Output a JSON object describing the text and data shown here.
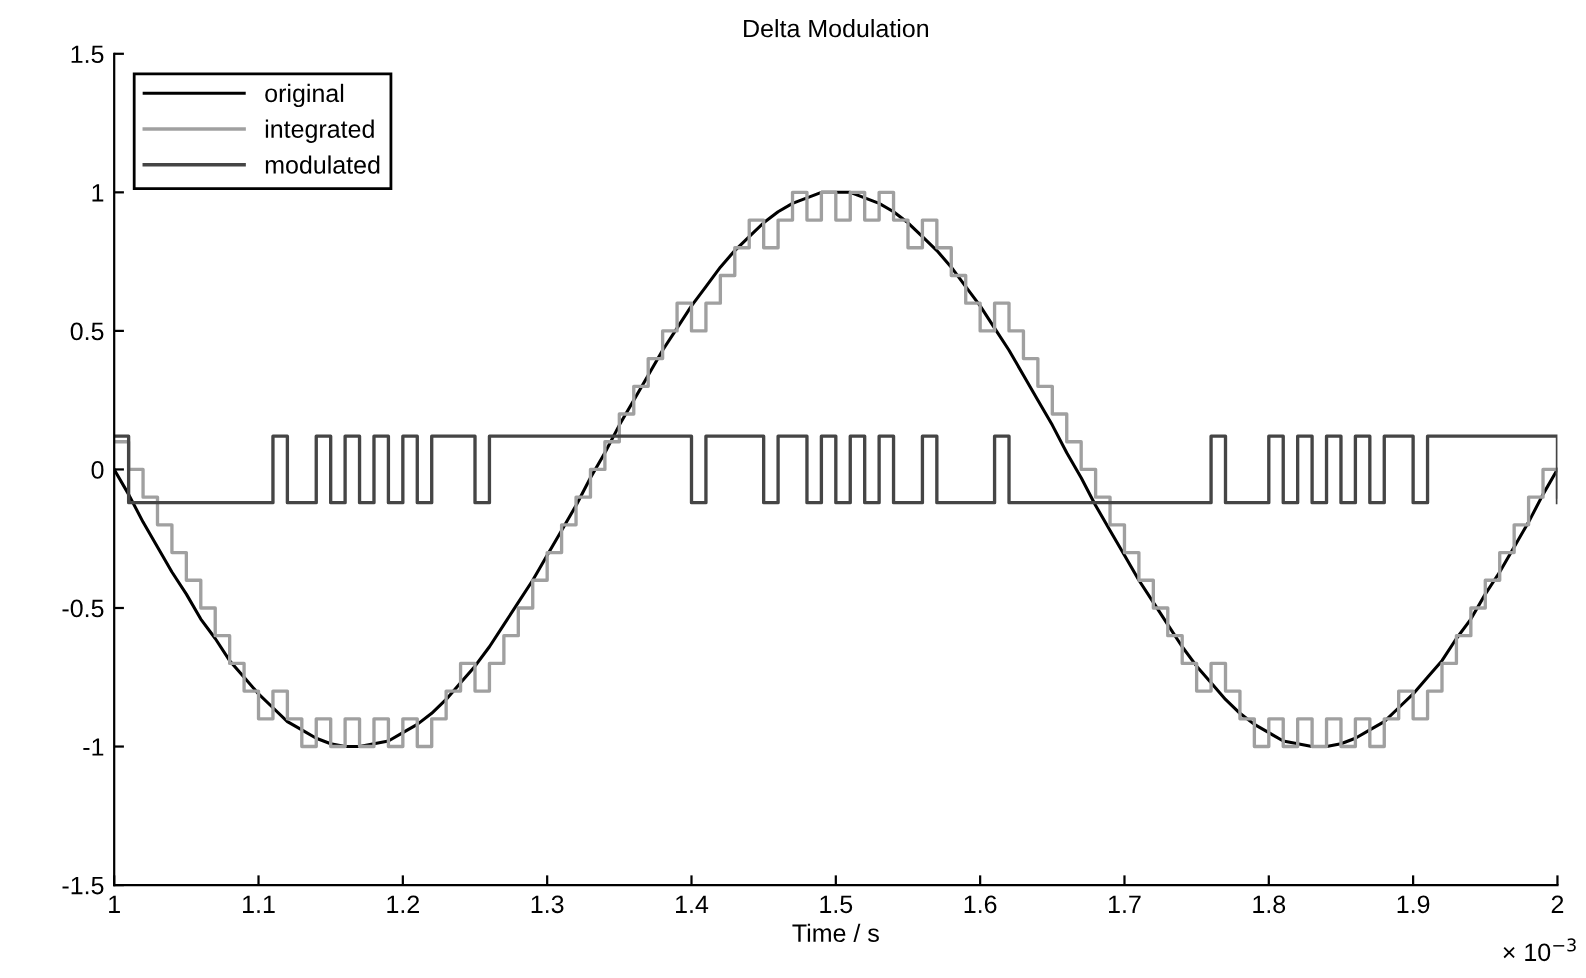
{
  "chart_data": {
    "type": "line",
    "title": "Delta Modulation",
    "xlabel": "Time / s",
    "annotations": [
      "× 10$^{−3}$"
    ],
    "x": [
      1,
      1.01,
      1.02,
      1.03,
      1.04,
      1.05,
      1.06,
      1.07,
      1.08,
      1.09,
      1.1,
      1.11,
      1.12,
      1.13,
      1.14,
      1.15,
      1.16,
      1.17,
      1.18,
      1.19,
      1.2,
      1.21,
      1.22,
      1.23,
      1.24,
      1.25,
      1.26,
      1.27,
      1.28,
      1.29,
      1.3,
      1.31,
      1.32,
      1.33,
      1.34,
      1.35,
      1.36,
      1.37,
      1.38,
      1.39,
      1.4,
      1.41,
      1.42,
      1.43,
      1.44,
      1.45,
      1.46,
      1.47,
      1.48,
      1.49,
      1.5,
      1.51,
      1.52,
      1.53,
      1.54,
      1.55,
      1.56,
      1.57,
      1.58,
      1.59,
      1.6,
      1.61,
      1.62,
      1.63,
      1.64,
      1.65,
      1.66,
      1.67,
      1.68,
      1.69,
      1.7,
      1.71,
      1.72,
      1.73,
      1.74,
      1.75,
      1.76,
      1.77,
      1.78,
      1.79,
      1.8,
      1.81,
      1.82,
      1.83,
      1.84,
      1.85,
      1.86,
      1.87,
      1.88,
      1.89,
      1.9,
      1.91,
      1.92,
      1.93,
      1.94,
      1.95,
      1.96,
      1.97,
      1.98,
      1.99,
      2
    ],
    "series": [
      {
        "name": "original",
        "color": "#000000",
        "values": [
          0,
          -0.09,
          -0.19,
          -0.28,
          -0.37,
          -0.45,
          -0.54,
          -0.61,
          -0.69,
          -0.75,
          -0.81,
          -0.86,
          -0.91,
          -0.94,
          -0.97,
          -0.99,
          -1,
          -1,
          -0.99,
          -0.98,
          -0.95,
          -0.92,
          -0.88,
          -0.83,
          -0.77,
          -0.71,
          -0.64,
          -0.56,
          -0.48,
          -0.4,
          -0.31,
          -0.22,
          -0.13,
          -0.03,
          0.06,
          0.16,
          0.25,
          0.34,
          0.43,
          0.51,
          0.59,
          0.66,
          0.73,
          0.79,
          0.84,
          0.89,
          0.93,
          0.96,
          0.98,
          1,
          1,
          1,
          0.98,
          0.96,
          0.93,
          0.89,
          0.84,
          0.79,
          0.73,
          0.66,
          0.59,
          0.51,
          0.43,
          0.34,
          0.25,
          0.16,
          0.06,
          -0.03,
          -0.13,
          -0.22,
          -0.31,
          -0.4,
          -0.48,
          -0.56,
          -0.64,
          -0.71,
          -0.77,
          -0.83,
          -0.88,
          -0.92,
          -0.95,
          -0.98,
          -0.99,
          -1,
          -1,
          -0.99,
          -0.97,
          -0.94,
          -0.91,
          -0.86,
          -0.81,
          -0.75,
          -0.69,
          -0.61,
          -0.54,
          -0.45,
          -0.37,
          -0.28,
          -0.19,
          -0.09,
          0
        ]
      },
      {
        "name": "integrated",
        "type": "step",
        "color": "#a0a0a0",
        "values": [
          0.1,
          0,
          -0.1,
          -0.2,
          -0.3,
          -0.4,
          -0.5,
          -0.6,
          -0.7,
          -0.8,
          -0.9,
          -0.8,
          -0.9,
          -1,
          -0.9,
          -1,
          -0.9,
          -1,
          -0.9,
          -1,
          -0.9,
          -1,
          -0.9,
          -0.8,
          -0.7,
          -0.8,
          -0.7,
          -0.6,
          -0.5,
          -0.4,
          -0.3,
          -0.2,
          -0.1,
          0,
          0.1,
          0.2,
          0.3,
          0.4,
          0.5,
          0.6,
          0.5,
          0.6,
          0.7,
          0.8,
          0.9,
          0.8,
          0.9,
          1,
          0.9,
          1,
          0.9,
          1,
          0.9,
          1,
          0.9,
          0.8,
          0.9,
          0.8,
          0.7,
          0.6,
          0.5,
          0.6,
          0.5,
          0.4,
          0.3,
          0.2,
          0.1,
          0,
          -0.1,
          -0.2,
          -0.3,
          -0.4,
          -0.5,
          -0.6,
          -0.7,
          -0.8,
          -0.7,
          -0.8,
          -0.9,
          -1,
          -0.9,
          -1,
          -0.9,
          -1,
          -0.9,
          -1,
          -0.9,
          -1,
          -0.9,
          -0.8,
          -0.9,
          -0.8,
          -0.7,
          -0.6,
          -0.5,
          -0.4,
          -0.3,
          -0.2,
          -0.1,
          0,
          -0.1
        ]
      },
      {
        "name": "modulated",
        "type": "step",
        "color": "#454545",
        "values": [
          0.12,
          -0.12,
          -0.12,
          -0.12,
          -0.12,
          -0.12,
          -0.12,
          -0.12,
          -0.12,
          -0.12,
          -0.12,
          0.12,
          -0.12,
          -0.12,
          0.12,
          -0.12,
          0.12,
          -0.12,
          0.12,
          -0.12,
          0.12,
          -0.12,
          0.12,
          0.12,
          0.12,
          -0.12,
          0.12,
          0.12,
          0.12,
          0.12,
          0.12,
          0.12,
          0.12,
          0.12,
          0.12,
          0.12,
          0.12,
          0.12,
          0.12,
          0.12,
          -0.12,
          0.12,
          0.12,
          0.12,
          0.12,
          -0.12,
          0.12,
          0.12,
          -0.12,
          0.12,
          -0.12,
          0.12,
          -0.12,
          0.12,
          -0.12,
          -0.12,
          0.12,
          -0.12,
          -0.12,
          -0.12,
          -0.12,
          0.12,
          -0.12,
          -0.12,
          -0.12,
          -0.12,
          -0.12,
          -0.12,
          -0.12,
          -0.12,
          -0.12,
          -0.12,
          -0.12,
          -0.12,
          -0.12,
          -0.12,
          0.12,
          -0.12,
          -0.12,
          -0.12,
          0.12,
          -0.12,
          0.12,
          -0.12,
          0.12,
          -0.12,
          0.12,
          -0.12,
          0.12,
          0.12,
          -0.12,
          0.12,
          0.12,
          0.12,
          0.12,
          0.12,
          0.12,
          0.12,
          0.12,
          0.12,
          -0.12
        ]
      }
    ],
    "xlim": [
      1,
      2
    ],
    "xticks": [
      1,
      1.1,
      1.2,
      1.3,
      1.4,
      1.5,
      1.6,
      1.7,
      1.8,
      1.9,
      2
    ],
    "ylim": [
      -1.5,
      1.5
    ],
    "yticks": [
      -1.5,
      -1,
      -0.5,
      0,
      0.5,
      1,
      1.5
    ],
    "grid": false,
    "legend": "top left",
    "marker": "none",
    "line_style": "solid"
  }
}
